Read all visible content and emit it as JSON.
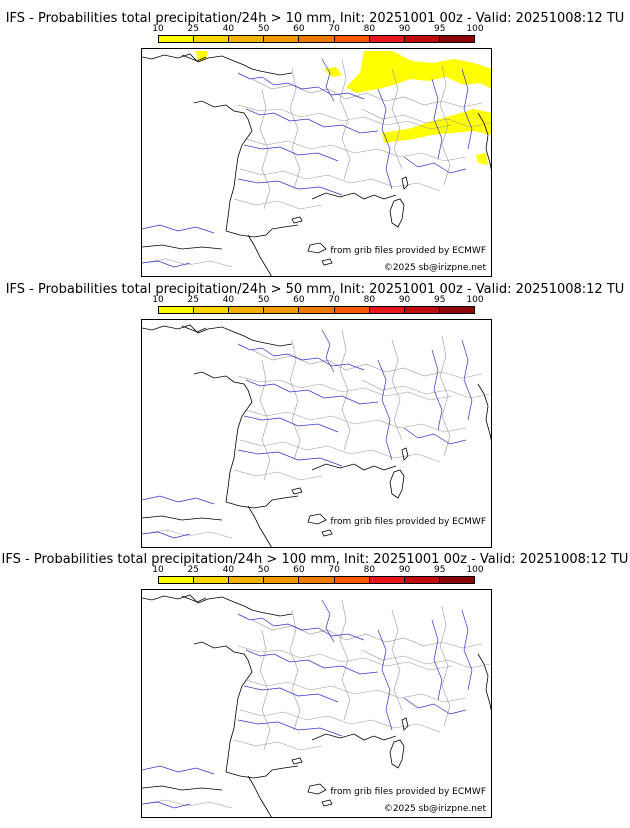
{
  "panels": [
    {
      "title": "IFS - Probabilities total precipitation/24h > 10 mm, Init: 20251001 00z - Valid: 20251008:12 TU",
      "shaded": true,
      "credit_source": "from grib files provided by ECMWF",
      "credit_copyright": "©2025 sb@irizpne.net"
    },
    {
      "title": "IFS - Probabilities total precipitation/24h > 50 mm, Init: 20251001 00z - Valid: 20251008:12 TU",
      "shaded": false,
      "credit_source": "from grib files provided by ECMWF",
      "credit_copyright": "©2025 sb@irizpne.net"
    },
    {
      "title": "IFS - Probabilities total precipitation/24h > 100 mm, Init: 20251001 00z - Valid: 20251008:12 TU",
      "shaded": false,
      "credit_source": "from grib files provided by ECMWF",
      "credit_copyright": "©2025 sb@irizpne.net"
    }
  ],
  "colorbar": {
    "ticks": [
      "10",
      "25",
      "40",
      "50",
      "60",
      "70",
      "80",
      "90",
      "95",
      "100"
    ],
    "colors": [
      "#ffff00",
      "#ffd700",
      "#f5b100",
      "#f39a00",
      "#ee7b00",
      "#ff5a00",
      "#e8171b",
      "#c20b0b",
      "#8e0505"
    ]
  },
  "colors": {
    "rivers": "#3333cc",
    "borders": "#9a9a9a",
    "coast": "#000000",
    "shading": "#ffff00"
  }
}
